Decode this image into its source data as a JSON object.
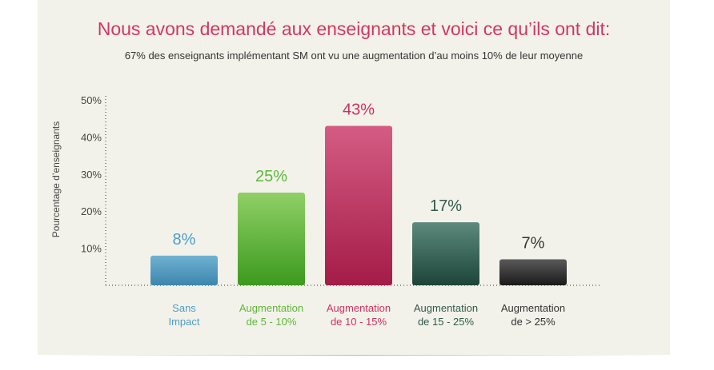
{
  "chart_data": {
    "type": "bar",
    "title": "Nous avons demandé aux enseignants et voici ce qu’ils ont dit:",
    "subtitle": "67% des enseignants implémentant SM ont vu une augmentation d’au moins 10% de leur moyenne",
    "ylabel": "Pourcentage d’enseignants",
    "xlabel": "",
    "ylim": [
      0,
      50
    ],
    "yticks": [
      "10%",
      "20%",
      "30%",
      "40%",
      "50%"
    ],
    "ytick_values": [
      10,
      20,
      30,
      40,
      50
    ],
    "grid": false,
    "categories": [
      [
        "Sans",
        "Impact"
      ],
      [
        "Augmentation",
        "de 5 - 10%"
      ],
      [
        "Augmentation",
        "de 10 - 15%"
      ],
      [
        "Augmentation",
        "de 15 - 25%"
      ],
      [
        "Augmentation",
        "de > 25%"
      ]
    ],
    "values": [
      8,
      25,
      43,
      17,
      7
    ],
    "value_labels": [
      "8%",
      "25%",
      "43%",
      "17%",
      "7%"
    ],
    "colors": {
      "bars_top": [
        "#6fb2d2",
        "#8fd066",
        "#d45c84",
        "#5c8a7d",
        "#5a5a5a"
      ],
      "bars_bottom": [
        "#3c86ac",
        "#3c9a1e",
        "#a41c48",
        "#1d4438",
        "#1a1a1a"
      ],
      "labels": [
        "#4a9ec4",
        "#5cb838",
        "#d42e5e",
        "#2f5a4c",
        "#333333"
      ],
      "title": "#d4365f"
    }
  }
}
